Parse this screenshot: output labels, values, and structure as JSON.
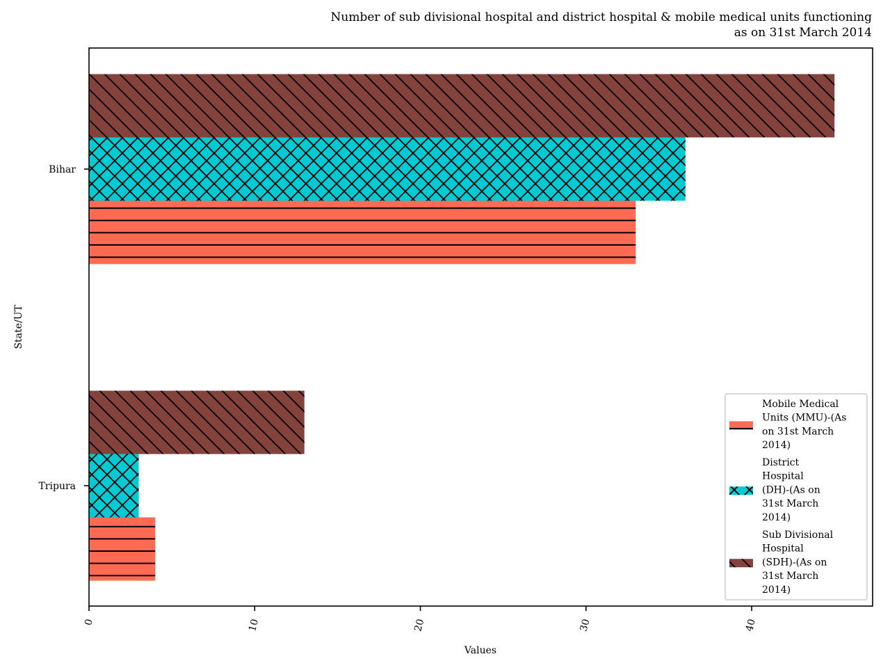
{
  "chart_data": {
    "type": "bar",
    "orientation": "horizontal",
    "title": "Number of sub divisional hospital and district hospital & mobile medical units functioning\nas on 31st March 2014",
    "xlabel": "Values",
    "ylabel": "State/UT",
    "categories": [
      "Bihar",
      "Tripura"
    ],
    "xlim": [
      0,
      47.3
    ],
    "xticks": [
      0,
      10,
      20,
      30,
      40
    ],
    "grid": false,
    "legend_position": "lower-right",
    "series": [
      {
        "name": "Mobile Medical Units (MMU)-(As on 31st March 2014)",
        "legend_lines": [
          "Mobile Medical",
          "Units (MMU)-(As",
          "on 31st March",
          "2014)"
        ],
        "values": [
          33,
          4
        ],
        "color": "#ff6a53",
        "hatch": "horizontal"
      },
      {
        "name": "District Hospital (DH)-(As on 31st March 2014)",
        "legend_lines": [
          "District",
          "Hospital",
          "(DH)-(As on",
          "31st March",
          "2014)"
        ],
        "values": [
          36,
          3
        ],
        "color": "#00cad3",
        "hatch": "cross"
      },
      {
        "name": "Sub Divisional Hospital (SDH)-(As on 31st March 2014)",
        "legend_lines": [
          "Sub Divisional",
          "Hospital",
          "(SDH)-(As on",
          "31st March",
          "2014)"
        ],
        "values": [
          45,
          13
        ],
        "color": "#84423d",
        "hatch": "diagonal"
      }
    ]
  }
}
